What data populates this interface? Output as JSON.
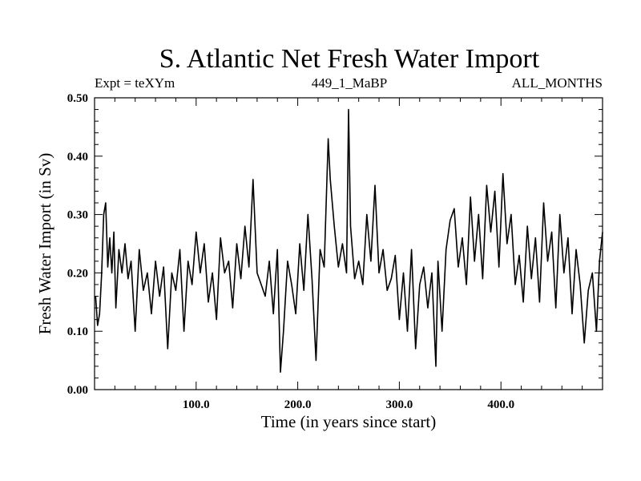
{
  "chart_data": {
    "type": "line",
    "title": "S. Atlantic Net Fresh Water Import",
    "subtitle_left": "Expt = teXYm",
    "subtitle_center": "449_1_MaBP",
    "subtitle_right": "ALL_MONTHS",
    "xlabel": "Time (in years since start)",
    "ylabel": "Fresh Water Import (in Sv)",
    "xlim": [
      0,
      500
    ],
    "ylim": [
      0,
      0.5
    ],
    "xticks": [
      100,
      200,
      300,
      400
    ],
    "xtick_labels": [
      "100.0",
      "200.0",
      "300.0",
      "400.0"
    ],
    "yticks": [
      0,
      0.1,
      0.2,
      0.3,
      0.4,
      0.5
    ],
    "ytick_labels": [
      "0.00",
      "0.10",
      "0.20",
      "0.30",
      "0.40",
      "0.50"
    ],
    "grid": false,
    "series": [
      {
        "x": [
          1,
          3,
          5,
          7,
          9,
          11,
          13,
          15,
          17,
          19,
          21,
          24,
          27,
          30,
          33,
          36,
          40,
          44,
          48,
          52,
          56,
          60,
          64,
          68,
          72,
          76,
          80,
          84,
          88,
          92,
          96,
          100,
          104,
          108,
          112,
          116,
          120,
          124,
          128,
          132,
          136,
          140,
          144,
          148,
          152,
          156,
          160,
          164,
          168,
          172,
          176,
          180,
          183,
          186,
          190,
          194,
          198,
          202,
          206,
          210,
          214,
          218,
          222,
          226,
          230,
          232,
          236,
          240,
          244,
          248,
          250,
          252,
          256,
          260,
          264,
          268,
          272,
          276,
          280,
          284,
          288,
          292,
          296,
          300,
          304,
          308,
          312,
          316,
          320,
          324,
          328,
          332,
          336,
          338,
          342,
          346,
          350,
          354,
          358,
          362,
          366,
          370,
          374,
          378,
          382,
          386,
          390,
          394,
          398,
          402,
          406,
          410,
          414,
          418,
          422,
          426,
          430,
          434,
          438,
          442,
          446,
          450,
          454,
          458,
          462,
          466,
          470,
          474,
          478,
          482,
          486,
          490,
          494,
          497,
          500
        ],
        "y": [
          0.16,
          0.11,
          0.13,
          0.2,
          0.3,
          0.32,
          0.21,
          0.26,
          0.2,
          0.27,
          0.14,
          0.24,
          0.2,
          0.25,
          0.19,
          0.22,
          0.1,
          0.24,
          0.17,
          0.2,
          0.13,
          0.22,
          0.16,
          0.21,
          0.07,
          0.2,
          0.17,
          0.24,
          0.1,
          0.22,
          0.18,
          0.27,
          0.2,
          0.25,
          0.15,
          0.2,
          0.12,
          0.26,
          0.2,
          0.22,
          0.14,
          0.25,
          0.19,
          0.28,
          0.21,
          0.36,
          0.2,
          0.18,
          0.16,
          0.22,
          0.13,
          0.24,
          0.03,
          0.1,
          0.22,
          0.18,
          0.13,
          0.25,
          0.17,
          0.3,
          0.19,
          0.05,
          0.24,
          0.21,
          0.43,
          0.36,
          0.28,
          0.21,
          0.25,
          0.2,
          0.48,
          0.28,
          0.19,
          0.22,
          0.18,
          0.3,
          0.22,
          0.35,
          0.2,
          0.24,
          0.17,
          0.19,
          0.23,
          0.12,
          0.2,
          0.1,
          0.24,
          0.07,
          0.18,
          0.21,
          0.14,
          0.2,
          0.04,
          0.22,
          0.1,
          0.24,
          0.29,
          0.31,
          0.21,
          0.26,
          0.18,
          0.33,
          0.22,
          0.3,
          0.19,
          0.35,
          0.27,
          0.34,
          0.21,
          0.37,
          0.25,
          0.3,
          0.18,
          0.23,
          0.15,
          0.28,
          0.19,
          0.26,
          0.15,
          0.32,
          0.22,
          0.27,
          0.14,
          0.3,
          0.2,
          0.26,
          0.13,
          0.24,
          0.18,
          0.08,
          0.17,
          0.2,
          0.1,
          0.22,
          0.27
        ]
      }
    ]
  }
}
